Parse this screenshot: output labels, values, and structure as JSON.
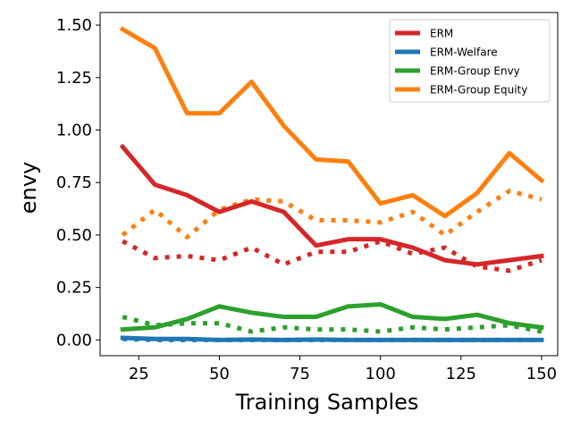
{
  "chart_data": {
    "type": "line",
    "xlabel": "Training Samples",
    "ylabel": "envy",
    "xlim": [
      13,
      155
    ],
    "ylim": [
      -0.075,
      1.56
    ],
    "xticks": [
      25,
      50,
      75,
      100,
      125,
      150
    ],
    "yticks": [
      0.0,
      0.25,
      0.5,
      0.75,
      1.0,
      1.25,
      1.5
    ],
    "xtick_labels": [
      "25",
      "50",
      "75",
      "100",
      "125",
      "150"
    ],
    "ytick_labels": [
      "0.00",
      "0.25",
      "0.50",
      "0.75",
      "1.00",
      "1.25",
      "1.50"
    ],
    "grid": false,
    "legend_position": "top-right",
    "x": [
      20,
      30,
      40,
      50,
      60,
      70,
      80,
      90,
      100,
      110,
      120,
      130,
      140,
      150
    ],
    "series": [
      {
        "name": "ERM",
        "color": "#d62728",
        "style": "solid",
        "values": [
          0.92,
          0.74,
          0.69,
          0.61,
          0.66,
          0.61,
          0.45,
          0.48,
          0.48,
          0.44,
          0.38,
          0.36,
          0.38,
          0.4
        ]
      },
      {
        "name": "ERM-Welfare",
        "color": "#1f77b4",
        "style": "solid",
        "values": [
          0.01,
          0.005,
          0.005,
          0.0,
          0.002,
          0.0,
          0.002,
          0.0,
          0.0,
          0.0,
          0.0,
          0.0,
          0.0,
          0.0
        ]
      },
      {
        "name": "ERM-Group Envy",
        "color": "#2ca02c",
        "style": "solid",
        "values": [
          0.05,
          0.06,
          0.1,
          0.16,
          0.13,
          0.11,
          0.11,
          0.16,
          0.17,
          0.11,
          0.1,
          0.12,
          0.08,
          0.06
        ]
      },
      {
        "name": "ERM-Group Equity",
        "color": "#ff7f0e",
        "style": "solid",
        "values": [
          1.48,
          1.39,
          1.08,
          1.08,
          1.23,
          1.02,
          0.86,
          0.85,
          0.65,
          0.69,
          0.59,
          0.7,
          0.89,
          0.76
        ]
      },
      {
        "name": "",
        "color": "#d62728",
        "style": "dotted",
        "values": [
          0.47,
          0.39,
          0.4,
          0.38,
          0.44,
          0.36,
          0.42,
          0.42,
          0.47,
          0.41,
          0.44,
          0.35,
          0.33,
          0.38
        ]
      },
      {
        "name": "",
        "color": "#1f77b4",
        "style": "dotted",
        "values": [
          0.005,
          0.0,
          0.0,
          0.0,
          0.0,
          0.0,
          0.0,
          0.0,
          0.0,
          0.0,
          0.0,
          0.0,
          0.0,
          0.0
        ]
      },
      {
        "name": "",
        "color": "#2ca02c",
        "style": "dotted",
        "values": [
          0.11,
          0.07,
          0.08,
          0.08,
          0.04,
          0.06,
          0.05,
          0.05,
          0.04,
          0.06,
          0.05,
          0.06,
          0.07,
          0.04
        ]
      },
      {
        "name": "",
        "color": "#ff7f0e",
        "style": "dotted",
        "values": [
          0.5,
          0.62,
          0.49,
          0.62,
          0.67,
          0.66,
          0.57,
          0.57,
          0.56,
          0.61,
          0.5,
          0.61,
          0.71,
          0.67
        ]
      }
    ]
  }
}
